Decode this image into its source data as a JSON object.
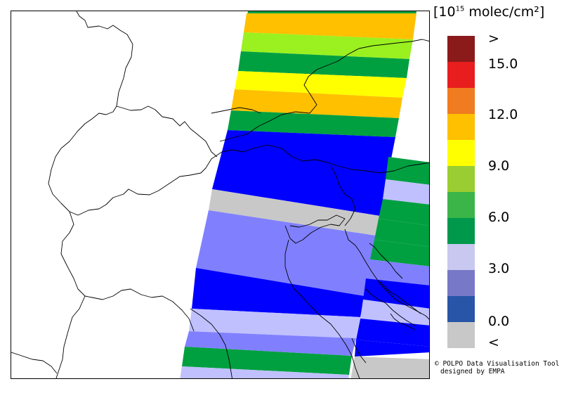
{
  "legend": {
    "unit_prefix": "[10",
    "unit_exponent": "15",
    "unit_suffix": " molec/cm²]",
    "colors": [
      "#8b1a1a",
      "#e81e1e",
      "#f07b20",
      "#ffc000",
      "#ffff00",
      "#9acd32",
      "#3cb548",
      "#00994c",
      "#c8c8f0",
      "#7878c8",
      "#2855a8",
      "#c8c8c8"
    ],
    "tick_labels": [
      ">",
      "15.0",
      "12.0",
      "9.0",
      "6.0",
      "3.0",
      "0.0",
      "<"
    ]
  },
  "swath_colors": {
    "dark_green": "#00a040",
    "light_green": "#9bf020",
    "orange": "#ffc000",
    "yellow": "#ffff00",
    "blue": "#0000ff",
    "gray": "#c8c8c8",
    "periwinkle": "#8080ff",
    "lavender": "#c0c0ff"
  },
  "credit": {
    "line1": "© POLPO Data Visualisation Tool",
    "line2": "designed by EMPA"
  }
}
